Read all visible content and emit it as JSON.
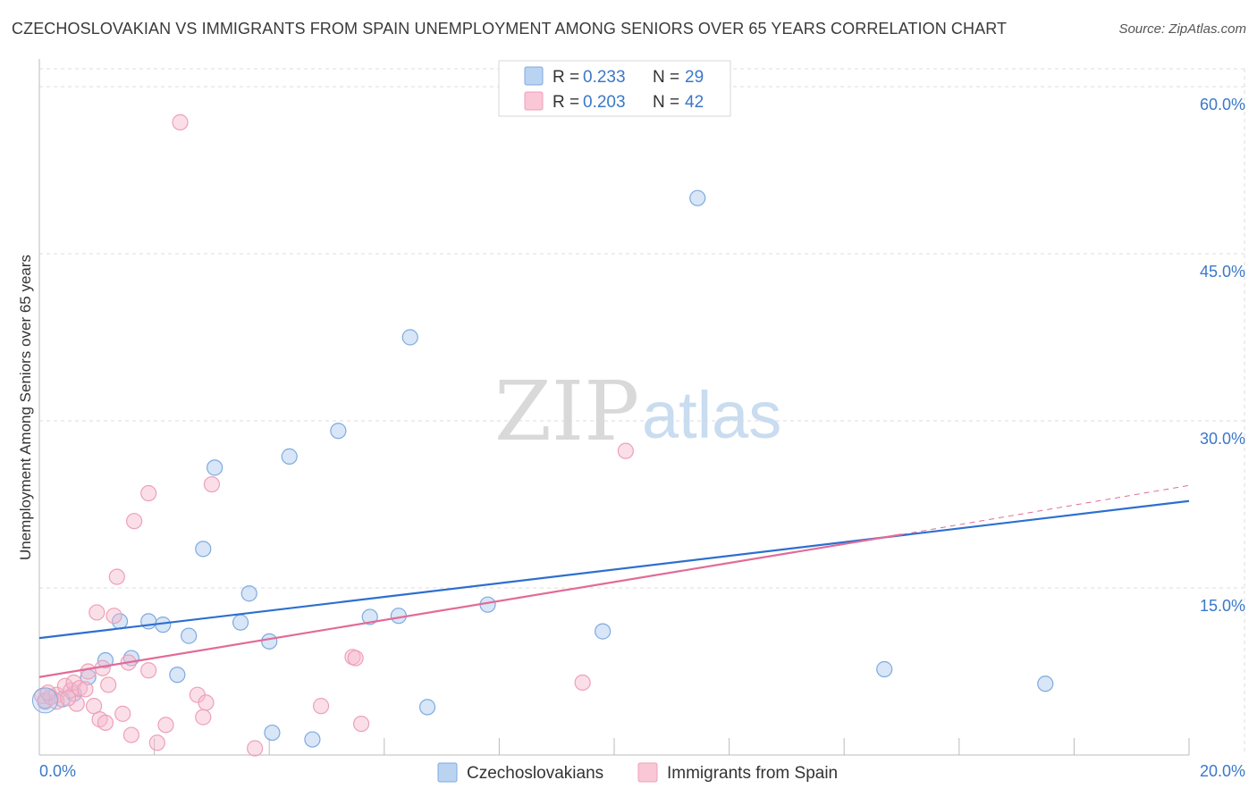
{
  "title": "CZECHOSLOVAKIAN VS IMMIGRANTS FROM SPAIN UNEMPLOYMENT AMONG SENIORS OVER 65 YEARS CORRELATION CHART",
  "source": "Source: ZipAtlas.com",
  "watermark": {
    "zip": "ZIP",
    "atlas": "atlas"
  },
  "colors": {
    "blue_fill": "#a9c8ee",
    "blue_stroke": "#7eaae0",
    "blue_line": "#2d6fcf",
    "pink_fill": "#f7b9cb",
    "pink_stroke": "#eea0b8",
    "pink_line": "#e26b97",
    "tick_text": "#3a78c9",
    "grid": "#dddddd"
  },
  "legend": [
    {
      "r_label": "R =",
      "r_value": "0.233",
      "n_label": "N =",
      "n_value": "29",
      "color": "blue"
    },
    {
      "r_label": "R =",
      "r_value": "0.203",
      "n_label": "N =",
      "n_value": "42",
      "color": "pink"
    }
  ],
  "chart_data": {
    "type": "scatter",
    "title": "CZECHOSLOVAKIAN VS IMMIGRANTS FROM SPAIN UNEMPLOYMENT AMONG SENIORS OVER 65 YEARS CORRELATION CHART",
    "xlabel": "",
    "ylabel": "Unemployment Among Seniors over 65 years",
    "xlim": [
      0,
      20
    ],
    "ylim": [
      0,
      60
    ],
    "x_ticks": [
      "0.0%",
      "20.0%"
    ],
    "y_ticks": [
      {
        "value": 15,
        "label": "15.0%"
      },
      {
        "value": 30,
        "label": "30.0%"
      },
      {
        "value": 45,
        "label": "45.0%"
      },
      {
        "value": 60,
        "label": "60.0%"
      }
    ],
    "grid": true,
    "legend_position": "bottom",
    "series": [
      {
        "name": "Czechoslovakians",
        "color": "blue",
        "trend": {
          "x0": 0,
          "y0": 10.5,
          "x1": 20,
          "y1": 22.8
        },
        "points": [
          [
            0.1,
            4.8
          ],
          [
            0.4,
            5.0
          ],
          [
            0.6,
            5.5
          ],
          [
            0.85,
            7.0
          ],
          [
            1.15,
            8.5
          ],
          [
            1.4,
            12.0
          ],
          [
            1.6,
            8.7
          ],
          [
            1.9,
            12.0
          ],
          [
            2.15,
            11.7
          ],
          [
            2.4,
            7.2
          ],
          [
            2.6,
            10.7
          ],
          [
            2.85,
            18.5
          ],
          [
            3.05,
            25.8
          ],
          [
            3.5,
            11.9
          ],
          [
            3.65,
            14.5
          ],
          [
            4.0,
            10.2
          ],
          [
            4.05,
            2.0
          ],
          [
            4.35,
            26.8
          ],
          [
            4.75,
            1.4
          ],
          [
            5.2,
            29.1
          ],
          [
            5.75,
            12.4
          ],
          [
            6.25,
            12.5
          ],
          [
            6.45,
            37.5
          ],
          [
            6.75,
            4.3
          ],
          [
            7.8,
            13.5
          ],
          [
            9.8,
            11.1
          ],
          [
            11.45,
            50.0
          ],
          [
            14.7,
            7.7
          ],
          [
            17.5,
            6.4
          ]
        ]
      },
      {
        "name": "Immigrants from Spain",
        "color": "pink",
        "trend": {
          "x0": 0,
          "y0": 7.0,
          "x1": 15,
          "y1": 19.8
        },
        "trend_dashed": {
          "x0": 15,
          "y0": 19.8,
          "x1": 20,
          "y1": 24.2
        },
        "points": [
          [
            0.05,
            5.3
          ],
          [
            0.1,
            4.9
          ],
          [
            0.2,
            5.2
          ],
          [
            0.3,
            5.4
          ],
          [
            0.45,
            6.2
          ],
          [
            0.55,
            5.8
          ],
          [
            0.6,
            6.5
          ],
          [
            0.65,
            4.6
          ],
          [
            0.7,
            6.0
          ],
          [
            0.8,
            5.9
          ],
          [
            0.85,
            7.5
          ],
          [
            0.95,
            4.4
          ],
          [
            1.0,
            12.8
          ],
          [
            1.05,
            3.2
          ],
          [
            1.1,
            7.8
          ],
          [
            1.15,
            2.9
          ],
          [
            1.2,
            6.3
          ],
          [
            1.3,
            12.5
          ],
          [
            1.35,
            16.0
          ],
          [
            1.45,
            3.7
          ],
          [
            1.55,
            8.3
          ],
          [
            1.6,
            1.8
          ],
          [
            1.65,
            21.0
          ],
          [
            1.9,
            7.6
          ],
          [
            1.9,
            23.5
          ],
          [
            2.05,
            1.1
          ],
          [
            2.2,
            2.7
          ],
          [
            2.45,
            56.8
          ],
          [
            2.75,
            5.4
          ],
          [
            2.85,
            3.4
          ],
          [
            2.9,
            4.7
          ],
          [
            3.0,
            24.3
          ],
          [
            3.75,
            0.6
          ],
          [
            4.9,
            4.4
          ],
          [
            5.45,
            8.8
          ],
          [
            5.5,
            8.7
          ],
          [
            5.6,
            2.8
          ],
          [
            9.45,
            6.5
          ],
          [
            10.2,
            27.3
          ],
          [
            0.3,
            4.8
          ],
          [
            0.5,
            5.1
          ],
          [
            0.15,
            5.6
          ]
        ]
      }
    ]
  }
}
